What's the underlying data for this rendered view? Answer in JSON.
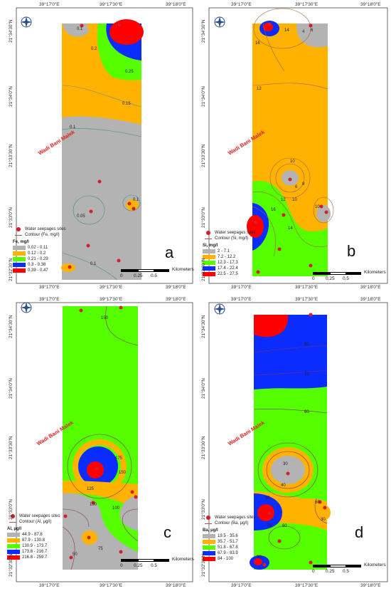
{
  "coords": {
    "lon": [
      "39°17'0\"E",
      "39°17'30\"E",
      "39°18'0\"E"
    ],
    "lat": [
      "21°34'30\"N",
      "21°34'0\"N",
      "21°33'30\"N",
      "21°33'0\"N",
      "21°32'30\"N"
    ]
  },
  "common": {
    "river_label": "Wadi Bani Malek",
    "sites_label": "Water seepages sites",
    "scale_label": "Kilometers",
    "scale_ticks": [
      "0",
      "0.25",
      "0.5"
    ]
  },
  "panels": [
    {
      "letter": "a",
      "contour_label": "Contour (Fe, mg/l)",
      "legend_title": "Fe, mg/l",
      "classes": [
        {
          "label": "0.02 - 0.11",
          "color": "#b3b3b3"
        },
        {
          "label": "0.12 - 0.2",
          "color": "#ffb300"
        },
        {
          "label": "0.21 - 0.29",
          "color": "#55ff00"
        },
        {
          "label": "0.3 - 0.38",
          "color": "#0a2cff"
        },
        {
          "label": "0.39 - 0.47",
          "color": "#ff0000"
        }
      ],
      "contour_labels": [
        "0.1",
        "0.2",
        "0.25",
        "0.15",
        "0.1",
        "0.05",
        "0.1",
        "0.1"
      ]
    },
    {
      "letter": "b",
      "contour_label": "Contour (Si, mg/l)",
      "legend_title": "Si, mg/l",
      "classes": [
        {
          "label": "2 - 7.1",
          "color": "#b3b3b3"
        },
        {
          "label": "7.2 - 12.2",
          "color": "#ffb300"
        },
        {
          "label": "12.3 - 17.3",
          "color": "#55ff00"
        },
        {
          "label": "17.4 - 22.4",
          "color": "#0a2cff"
        },
        {
          "label": "22.5 - 27.5",
          "color": "#ff0000"
        }
      ],
      "contour_labels": [
        "14",
        "16",
        "4",
        "6",
        "12",
        "10",
        "8",
        "6",
        "12",
        "10",
        "16",
        "14",
        "10"
      ]
    },
    {
      "letter": "c",
      "contour_label": "Contour (Al, μg/l)",
      "legend_title": "Al, μg/l",
      "classes": [
        {
          "label": "44.9 - 87.8",
          "color": "#b3b3b3"
        },
        {
          "label": "87.9 - 130.8",
          "color": "#ffb300"
        },
        {
          "label": "130.9 - 173.7",
          "color": "#55ff00"
        },
        {
          "label": "173.8 - 216.7",
          "color": "#0a2cff"
        },
        {
          "label": "216.8 - 259.7",
          "color": "#ff0000"
        }
      ],
      "contour_labels": [
        "150",
        "175",
        "150",
        "125",
        "100",
        "75",
        "50",
        "100"
      ]
    },
    {
      "letter": "d",
      "contour_label": "Contour (Ba, μg/l)",
      "legend_title": "Ba, μg/l",
      "classes": [
        {
          "label": "19.5 - 35.6",
          "color": "#b3b3b3"
        },
        {
          "label": "35.7 - 51.7",
          "color": "#ffb300"
        },
        {
          "label": "51.8 - 67.8",
          "color": "#55ff00"
        },
        {
          "label": "67.9 - 83.9",
          "color": "#0a2cff"
        },
        {
          "label": "84 - 100",
          "color": "#ff0000"
        }
      ],
      "contour_labels": [
        "80",
        "70",
        "60",
        "30",
        "40",
        "50",
        "60",
        "70",
        "80",
        "60",
        "30"
      ]
    }
  ]
}
